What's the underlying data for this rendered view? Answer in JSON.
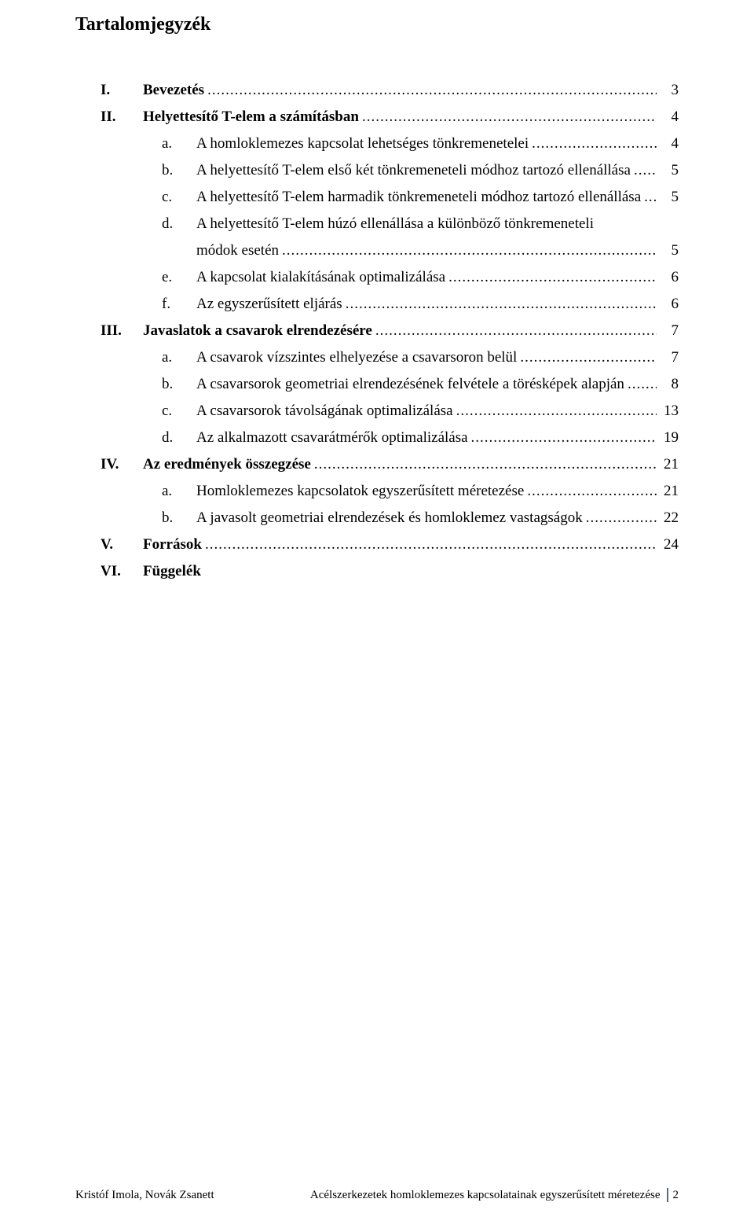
{
  "title": "Tartalomjegyzék",
  "toc": [
    {
      "level": 0,
      "marker": "I.",
      "bold": true,
      "label": "Bevezetés",
      "page": "3"
    },
    {
      "level": 0,
      "marker": "II.",
      "bold": true,
      "label": "Helyettesítő T-elem a számításban",
      "page": "4"
    },
    {
      "level": 1,
      "marker": "a.",
      "bold": false,
      "label": "A homloklemezes kapcsolat lehetséges tönkremenetelei",
      "page": "4"
    },
    {
      "level": 1,
      "marker": "b.",
      "bold": false,
      "label": "A helyettesítő T-elem első két tönkremeneteli módhoz tartozó ellenállása",
      "page": "5"
    },
    {
      "level": 1,
      "marker": "c.",
      "bold": false,
      "label": "A helyettesítő T-elem harmadik tönkremeneteli módhoz tartozó ellenállása",
      "page": "5"
    },
    {
      "level": 1,
      "marker": "d.",
      "bold": false,
      "label": "A helyettesítő T-elem húzó ellenállása a különböző tönkremeneteli",
      "label2": "módok esetén",
      "page": "5"
    },
    {
      "level": 1,
      "marker": "e.",
      "bold": false,
      "label": "A kapcsolat kialakításának optimalizálása",
      "page": "6"
    },
    {
      "level": 1,
      "marker": "f.",
      "bold": false,
      "label": "Az egyszerűsített eljárás",
      "page": "6"
    },
    {
      "level": 0,
      "marker": "III.",
      "bold": true,
      "label": "Javaslatok a csavarok elrendezésére",
      "page": "7"
    },
    {
      "level": 1,
      "marker": "a.",
      "bold": false,
      "label": "A csavarok vízszintes elhelyezése a csavarsoron belül",
      "page": "7"
    },
    {
      "level": 1,
      "marker": "b.",
      "bold": false,
      "label": "A csavarsorok geometriai elrendezésének felvétele a törésképek alapján",
      "page": "8"
    },
    {
      "level": 1,
      "marker": "c.",
      "bold": false,
      "label": "A csavarsorok távolságának optimalizálása",
      "page": "13"
    },
    {
      "level": 1,
      "marker": "d.",
      "bold": false,
      "label": "Az alkalmazott csavarátmérők optimalizálása",
      "page": "19"
    },
    {
      "level": 0,
      "marker": "IV.",
      "bold": true,
      "label": "Az eredmények összegzése",
      "page": "21"
    },
    {
      "level": 1,
      "marker": "a.",
      "bold": false,
      "label": "Homloklemezes kapcsolatok egyszerűsített méretezése",
      "page": "21"
    },
    {
      "level": 1,
      "marker": "b.",
      "bold": false,
      "label": "A javasolt geometriai elrendezések és homloklemez vastagságok",
      "page": "22"
    },
    {
      "level": 0,
      "marker": "V.",
      "bold": true,
      "label": "Források",
      "page": "24"
    },
    {
      "level": 0,
      "marker": "VI.",
      "bold": true,
      "label": "Függelék",
      "page": ""
    }
  ],
  "footer": {
    "left": "Kristóf Imola, Novák Zsanett",
    "rightText": "Acélszerkezetek homloklemezes kapcsolatainak egyszerűsített méretezése",
    "pageNum": "2"
  },
  "colors": {
    "text": "#000000",
    "background": "#ffffff",
    "footerSep": "#5b6b7a"
  },
  "typography": {
    "family": "Times New Roman",
    "titleSizePt": 18,
    "bodySizePt": 14,
    "footerSizePt": 11
  }
}
